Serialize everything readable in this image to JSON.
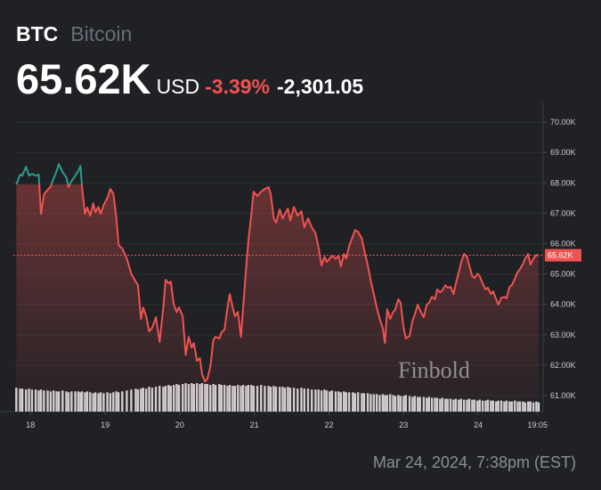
{
  "chart_data": {
    "type": "line",
    "symbol": "BTC",
    "name": "Bitcoin",
    "currency": "USD",
    "change_percent": "-3.39%",
    "change": "-2,301.05",
    "timestamp": "Mar 24, 2024, 7:38pm (EST)",
    "watermark": "Finbold",
    "colors": {
      "up": "#2a9d8f",
      "down": "#ef5350"
    },
    "volume_color": "#d2d3d6",
    "grid": true,
    "xlim": [
      17.77,
      24.87
    ],
    "xticks": [
      18,
      19,
      20,
      21,
      22,
      23,
      24,
      {
        "value": 24.795,
        "label": "19:05"
      }
    ],
    "ylim": [
      60470,
      70650
    ],
    "yticks": [
      {
        "value": 61000,
        "label": "61.00K"
      },
      {
        "value": 62000,
        "label": "62.00K"
      },
      {
        "value": 63000,
        "label": "63.00K"
      },
      {
        "value": 64000,
        "label": "64.00K"
      },
      {
        "value": 65000,
        "label": "65.00K"
      },
      {
        "value": 66000,
        "label": "66.00K"
      },
      {
        "value": 67000,
        "label": "67.00K"
      },
      {
        "value": 68000,
        "label": "68.00K"
      },
      {
        "value": 69000,
        "label": "69.00K"
      },
      {
        "value": 70000,
        "label": "70.00K"
      }
    ],
    "price_line": {
      "value": 65620,
      "label": "65.62K"
    },
    "x": [
      17.81,
      17.86,
      17.89,
      17.94,
      17.98,
      18.02,
      18.07,
      18.11,
      18.14,
      18.18,
      18.23,
      18.27,
      18.31,
      18.35,
      18.38,
      18.43,
      18.48,
      18.51,
      18.55,
      18.6,
      18.64,
      18.67,
      18.69,
      18.73,
      18.76,
      18.8,
      18.84,
      18.87,
      18.91,
      18.94,
      18.98,
      19.03,
      19.07,
      19.11,
      19.15,
      19.18,
      19.23,
      19.29,
      19.35,
      19.41,
      19.44,
      19.48,
      19.51,
      19.55,
      19.59,
      19.63,
      19.68,
      19.73,
      19.78,
      19.81,
      19.85,
      19.88,
      19.92,
      19.96,
      19.99,
      20.04,
      20.08,
      20.12,
      20.16,
      20.19,
      20.23,
      20.27,
      20.3,
      20.34,
      20.37,
      20.41,
      20.45,
      20.48,
      20.53,
      20.56,
      20.6,
      20.64,
      20.67,
      20.71,
      20.74,
      20.78,
      20.82,
      20.85,
      20.89,
      20.92,
      20.96,
      20.99,
      21.04,
      21.09,
      21.14,
      21.19,
      21.22,
      21.26,
      21.29,
      21.34,
      21.38,
      21.41,
      21.45,
      21.48,
      21.53,
      21.58,
      21.63,
      21.67,
      21.72,
      21.77,
      21.82,
      21.86,
      21.9,
      21.94,
      21.97,
      22.01,
      22.04,
      22.09,
      22.13,
      22.16,
      22.2,
      22.23,
      22.27,
      22.32,
      22.35,
      22.39,
      22.44,
      22.47,
      22.52,
      22.56,
      22.6,
      22.64,
      22.68,
      22.72,
      22.75,
      22.78,
      22.82,
      22.86,
      22.89,
      22.93,
      22.96,
      23.0,
      23.03,
      23.08,
      23.12,
      23.15,
      23.19,
      23.22,
      23.27,
      23.31,
      23.34,
      23.38,
      23.42,
      23.45,
      23.49,
      23.52,
      23.56,
      23.59,
      23.63,
      23.67,
      23.7,
      23.74,
      23.77,
      23.81,
      23.85,
      23.88,
      23.92,
      23.95,
      23.99,
      24.02,
      24.06,
      24.1,
      24.13,
      24.17,
      24.2,
      24.24,
      24.27,
      24.31,
      24.35,
      24.38,
      24.42,
      24.45,
      24.49,
      24.53,
      24.56,
      24.6,
      24.63,
      24.67,
      24.7,
      24.74,
      24.78,
      24.81
    ],
    "values": [
      67950,
      68270,
      68240,
      68530,
      68240,
      68300,
      68240,
      68270,
      66980,
      67630,
      67770,
      67890,
      68150,
      68390,
      68620,
      68360,
      68180,
      67860,
      68060,
      68240,
      68390,
      68560,
      67860,
      66980,
      67190,
      66920,
      67330,
      67040,
      67210,
      66980,
      67270,
      67510,
      67800,
      67650,
      66890,
      65950,
      65840,
      65510,
      65010,
      64750,
      64630,
      63520,
      63900,
      63610,
      63110,
      63230,
      63580,
      62760,
      63900,
      64810,
      64690,
      64750,
      63990,
      63750,
      63900,
      63610,
      62340,
      62930,
      62580,
      62730,
      62140,
      62230,
      61700,
      61460,
      61550,
      61940,
      62820,
      62930,
      62880,
      63080,
      63170,
      63900,
      64340,
      63900,
      63610,
      63750,
      62930,
      63900,
      65220,
      66100,
      66980,
      67710,
      67570,
      67710,
      67800,
      67860,
      67630,
      66830,
      66690,
      67130,
      66830,
      66980,
      67160,
      66770,
      67210,
      66920,
      67070,
      66540,
      66830,
      66540,
      66340,
      65870,
      65280,
      65570,
      65400,
      65510,
      65600,
      65510,
      65600,
      65250,
      65660,
      65510,
      65920,
      66250,
      66450,
      66390,
      66160,
      65810,
      65280,
      64780,
      64340,
      63900,
      63520,
      63230,
      62730,
      63840,
      63520,
      63750,
      63840,
      64170,
      64050,
      63230,
      62880,
      62960,
      63460,
      63670,
      63990,
      63810,
      63580,
      63990,
      64050,
      64250,
      64170,
      64490,
      64400,
      64460,
      64630,
      64550,
      64580,
      64340,
      64690,
      65070,
      65370,
      65660,
      65570,
      65280,
      64930,
      64870,
      65010,
      64930,
      64690,
      64490,
      64550,
      64340,
      64430,
      64170,
      63990,
      64220,
      64250,
      64200,
      64580,
      64630,
      64840,
      65070,
      65160,
      65340,
      65510,
      65660,
      65310,
      65510,
      65630,
      65620
    ],
    "volume": [
      26,
      25,
      25,
      24,
      25,
      24,
      24,
      23,
      24,
      23,
      23,
      22,
      23,
      22,
      22,
      23,
      22,
      21,
      22,
      22,
      22,
      21,
      22,
      21,
      22,
      21,
      20,
      21,
      20,
      21,
      20,
      21,
      20,
      21,
      22,
      21,
      22,
      23,
      24,
      25,
      24,
      25,
      26,
      25,
      27,
      26,
      27,
      28,
      27,
      28,
      29,
      28,
      29,
      30,
      29,
      30,
      31,
      30,
      31,
      30,
      31,
      30,
      31,
      30,
      30,
      29,
      30,
      29,
      30,
      29,
      29,
      28,
      29,
      28,
      28,
      29,
      28,
      29,
      28,
      29,
      29,
      28,
      28,
      29,
      28,
      28,
      27,
      28,
      27,
      27,
      27,
      26,
      27,
      26,
      26,
      25,
      26,
      25,
      25,
      24,
      24,
      24,
      23,
      24,
      23,
      22,
      23,
      22,
      22,
      21,
      22,
      21,
      21,
      21,
      20,
      21,
      20,
      20,
      20,
      19,
      19,
      19,
      18,
      19,
      18,
      18,
      19,
      18,
      17,
      18,
      17,
      17,
      18,
      17,
      16,
      17,
      16,
      16,
      16,
      15,
      16,
      15,
      15,
      15,
      14,
      15,
      14,
      14,
      14,
      13,
      14,
      13,
      14,
      13,
      13,
      14,
      13,
      13,
      12,
      13,
      12,
      12,
      13,
      12,
      12,
      11,
      12,
      12,
      11,
      12,
      11,
      11,
      12,
      11,
      11,
      11,
      10,
      11,
      11,
      10,
      11,
      10
    ]
  }
}
